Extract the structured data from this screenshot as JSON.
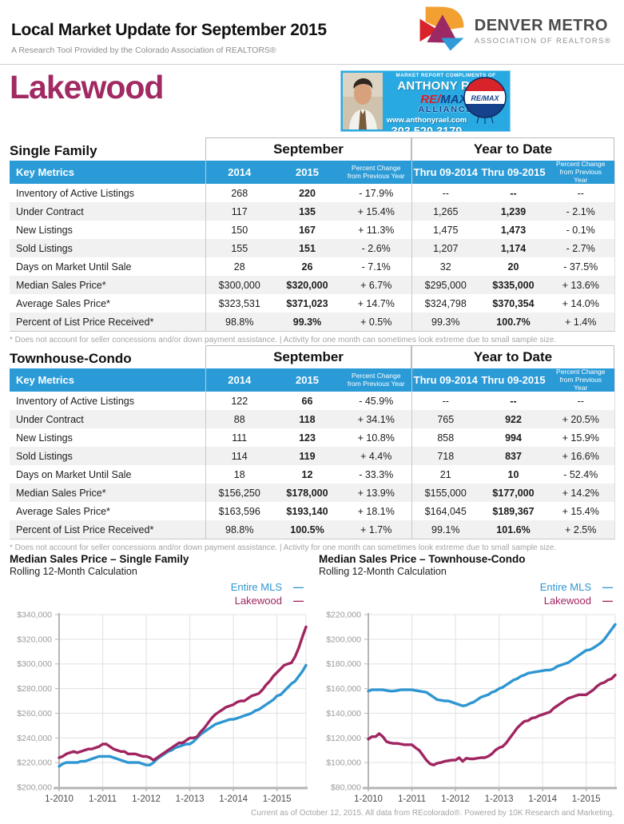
{
  "header": {
    "title": "Local Market Update for September 2015",
    "subtitle": "A Research Tool Provided by the Colorado Association of REALTORS®",
    "logo": {
      "line1": "DENVER METRO",
      "line2": "ASSOCIATION OF REALTORS®"
    }
  },
  "location": "Lakewood",
  "ad_banner": {
    "compliments": "MARKET REPORT COMPLIMENTS OF",
    "name": "ANTHONY RAEL",
    "brand_re": "RE",
    "brand_slash": "/",
    "brand_max": "MAX",
    "brand_reg": "®",
    "brand2": "ALLIANCE",
    "website": "www.anthonyrael.com",
    "phone": "303.520.3179",
    "balloon_text": "RE/MAX",
    "bg_color": "#29a9e1"
  },
  "colors": {
    "table_header_blue": "#2b9bd7",
    "accent_magenta": "#a12a63",
    "chart_blue": "#2e96d2",
    "chart_magenta": "#a02560"
  },
  "tables": [
    {
      "section_title": "Single Family",
      "group1": "September",
      "group2": "Year to Date",
      "header": [
        "Key Metrics",
        "2014",
        "2015",
        "Percent Change from Previous Year",
        "Thru 09-2014",
        "Thru 09-2015",
        "Percent Change from Previous Year"
      ],
      "rows": [
        [
          "Inventory of Active Listings",
          "268",
          "220",
          "- 17.9%",
          "--",
          "--",
          "--"
        ],
        [
          "Under Contract",
          "117",
          "135",
          "+ 15.4%",
          "1,265",
          "1,239",
          "- 2.1%"
        ],
        [
          "New Listings",
          "150",
          "167",
          "+ 11.3%",
          "1,475",
          "1,473",
          "- 0.1%"
        ],
        [
          "Sold Listings",
          "155",
          "151",
          "- 2.6%",
          "1,207",
          "1,174",
          "- 2.7%"
        ],
        [
          "Days on Market Until Sale",
          "28",
          "26",
          "- 7.1%",
          "32",
          "20",
          "- 37.5%"
        ],
        [
          "Median Sales Price*",
          "$300,000",
          "$320,000",
          "+ 6.7%",
          "$295,000",
          "$335,000",
          "+ 13.6%"
        ],
        [
          "Average Sales Price*",
          "$323,531",
          "$371,023",
          "+ 14.7%",
          "$324,798",
          "$370,354",
          "+ 14.0%"
        ],
        [
          "Percent of List Price Received*",
          "98.8%",
          "99.3%",
          "+ 0.5%",
          "99.3%",
          "100.7%",
          "+ 1.4%"
        ]
      ],
      "footnote": "* Does not account for seller concessions and/or down payment assistance.  |  Activity for one month can sometimes look extreme due to small sample size."
    },
    {
      "section_title": "Townhouse-Condo",
      "group1": "September",
      "group2": "Year to Date",
      "header": [
        "Key Metrics",
        "2014",
        "2015",
        "Percent Change from Previous Year",
        "Thru 09-2014",
        "Thru 09-2015",
        "Percent Change from Previous Year"
      ],
      "rows": [
        [
          "Inventory of Active Listings",
          "122",
          "66",
          "- 45.9%",
          "--",
          "--",
          "--"
        ],
        [
          "Under Contract",
          "88",
          "118",
          "+ 34.1%",
          "765",
          "922",
          "+ 20.5%"
        ],
        [
          "New Listings",
          "111",
          "123",
          "+ 10.8%",
          "858",
          "994",
          "+ 15.9%"
        ],
        [
          "Sold Listings",
          "114",
          "119",
          "+ 4.4%",
          "718",
          "837",
          "+ 16.6%"
        ],
        [
          "Days on Market Until Sale",
          "18",
          "12",
          "- 33.3%",
          "21",
          "10",
          "- 52.4%"
        ],
        [
          "Median Sales Price*",
          "$156,250",
          "$178,000",
          "+ 13.9%",
          "$155,000",
          "$177,000",
          "+ 14.2%"
        ],
        [
          "Average Sales Price*",
          "$163,596",
          "$193,140",
          "+ 18.1%",
          "$164,045",
          "$189,367",
          "+ 15.4%"
        ],
        [
          "Percent of List Price Received*",
          "98.8%",
          "100.5%",
          "+ 1.7%",
          "99.1%",
          "101.6%",
          "+ 2.5%"
        ]
      ],
      "footnote": "* Does not account for seller concessions and/or down payment assistance.  |  Activity for one month can sometimes look extreme due to small sample size."
    }
  ],
  "chart_data": [
    {
      "type": "line",
      "title": "Median Sales Price – Single Family",
      "subtitle": "Rolling 12-Month Calculation",
      "x_start": "1-2010",
      "x_end": "9-2015",
      "xticklabels": [
        "1-2010",
        "1-2011",
        "1-2012",
        "1-2013",
        "1-2014",
        "1-2015"
      ],
      "xtick_positions": [
        0,
        12,
        24,
        36,
        48,
        60
      ],
      "ylim": [
        200000,
        340000
      ],
      "ytick_step": 20000,
      "grid": true,
      "legend_position": "top-right",
      "series": [
        {
          "name": "Entire MLS",
          "color": "#2e96d2",
          "values": [
            217000,
            219000,
            220000,
            220000,
            220000,
            220000,
            221000,
            221000,
            222000,
            223000,
            224000,
            225000,
            225000,
            225000,
            225000,
            224000,
            223000,
            222000,
            221000,
            220000,
            220000,
            220000,
            220000,
            219000,
            218000,
            218000,
            220000,
            223000,
            225000,
            227000,
            229000,
            230000,
            232000,
            233000,
            234000,
            235000,
            235000,
            237000,
            240000,
            243000,
            245000,
            247000,
            249000,
            251000,
            252000,
            253000,
            254000,
            255000,
            255000,
            256000,
            257000,
            258000,
            259000,
            260000,
            262000,
            263000,
            265000,
            267000,
            269000,
            271000,
            274000,
            275000,
            278000,
            281000,
            284000,
            286000,
            290000,
            294000,
            299000
          ]
        },
        {
          "name": "Lakewood",
          "color": "#a02560",
          "values": [
            224000,
            225000,
            227000,
            228000,
            229000,
            228000,
            229000,
            230000,
            231000,
            231000,
            232000,
            233000,
            235000,
            235000,
            233000,
            231000,
            230000,
            229000,
            229000,
            227000,
            227000,
            227000,
            226000,
            225000,
            225000,
            224000,
            222000,
            224000,
            226000,
            228000,
            230000,
            232000,
            234000,
            236000,
            236000,
            238000,
            240000,
            240000,
            241000,
            245000,
            248000,
            252000,
            256000,
            259000,
            261000,
            263000,
            265000,
            266000,
            267000,
            269000,
            270000,
            270000,
            272000,
            274000,
            275000,
            276000,
            279000,
            283000,
            286000,
            290000,
            293000,
            296000,
            299000,
            300000,
            301000,
            306000,
            313000,
            322000,
            330000
          ]
        }
      ]
    },
    {
      "type": "line",
      "title": "Median Sales Price – Townhouse-Condo",
      "subtitle": "Rolling 12-Month Calculation",
      "x_start": "1-2010",
      "x_end": "9-2015",
      "xticklabels": [
        "1-2010",
        "1-2011",
        "1-2012",
        "1-2013",
        "1-2014",
        "1-2015"
      ],
      "xtick_positions": [
        0,
        12,
        24,
        36,
        48,
        60
      ],
      "ylim": [
        80000,
        220000
      ],
      "ytick_step": 20000,
      "grid": true,
      "legend_position": "top-right",
      "series": [
        {
          "name": "Entire MLS",
          "color": "#2e96d2",
          "values": [
            158000,
            159000,
            159000,
            159000,
            159000,
            158500,
            158000,
            158000,
            158500,
            159000,
            159000,
            159000,
            159000,
            158500,
            158000,
            157500,
            157000,
            155000,
            153000,
            151000,
            150500,
            150000,
            150000,
            149000,
            148000,
            147000,
            146000,
            146500,
            148000,
            149000,
            151000,
            153000,
            154000,
            155000,
            157000,
            158000,
            160000,
            161000,
            163000,
            165000,
            167000,
            168000,
            170000,
            171000,
            172500,
            173000,
            173500,
            174000,
            174500,
            175000,
            175000,
            176000,
            178000,
            179000,
            180000,
            181000,
            183000,
            185000,
            187000,
            189000,
            191000,
            191500,
            193000,
            195000,
            197000,
            200000,
            204000,
            208000,
            212000
          ]
        },
        {
          "name": "Lakewood",
          "color": "#a02560",
          "values": [
            119000,
            121000,
            121000,
            123500,
            121000,
            117000,
            116000,
            115500,
            115500,
            115000,
            114500,
            114500,
            114500,
            112000,
            110000,
            106000,
            102000,
            99000,
            98000,
            99500,
            100000,
            101000,
            101500,
            102000,
            102000,
            104000,
            101000,
            103500,
            103000,
            103000,
            103500,
            104000,
            104000,
            105000,
            107000,
            110000,
            112000,
            113000,
            116000,
            120000,
            124000,
            128000,
            131000,
            133500,
            134000,
            136000,
            136500,
            138000,
            139000,
            140000,
            141000,
            144000,
            146000,
            148000,
            150000,
            152000,
            153000,
            154000,
            155000,
            155000,
            155000,
            157000,
            159000,
            162000,
            164000,
            165000,
            167000,
            168000,
            171000
          ]
        }
      ]
    }
  ],
  "footer": "Current as of October 12, 2015. All data from REcolorado®. Powered by 10K Research and Marketing."
}
